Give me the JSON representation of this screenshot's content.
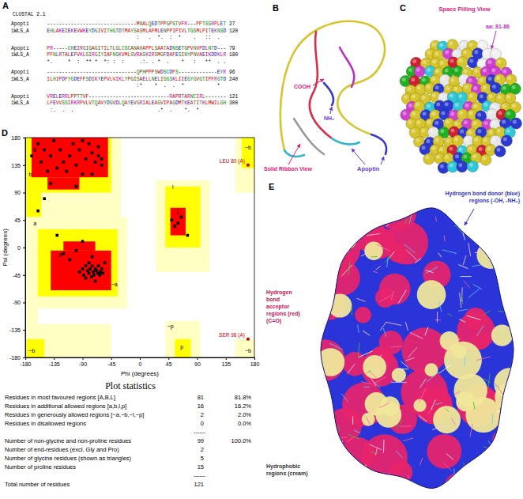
{
  "panel_labels": [
    "A",
    "B",
    "C",
    "D",
    "E"
  ],
  "alignment": {
    "header": "CLUSTAL 2.1",
    "blocks": [
      [
        "Apopti      ------------------------------MNALQEDTPPGPSTVFR---PPTSSRPLET 27",
        "1WLS_A      EHLAKEIEKEVWKEYDGIVITHGTDTMAYSASMLAFMLENPPIPIVLTGSMLPITEKNSD 120",
        "                                          :   .  *.  :  *    .   ::  .  "
      ],
      [
        "Apopti      PR-----CHEIRGIGAGITILTLGLCGCANAHAPPLSAATADNSETGPVNVPDLNTD--- 79",
        "1WLS_A      PFNLRTALEFVKLGIRGIYIAFNGKVMLGVRASKIRSMGFDAFESINYPNVAEIKDDKLR 180",
        "            *.     *  :  ** *  *: :  :     .:. . *  .    *   :   **  . ."
      ],
      [
        "Apopti      ------------------------------QPHPPPSWDSCDPS-------------EYR 96",
        "1WLS_A      ILHIPDFYGDEFFSDIKYEPVLVIKLYPGISAELLNELIGGSKLIIEGYGVGTIPFRGTD 240",
        "                                          :*    *  .  .  *           *  "
      ],
      [
        "Apopti      VRELERRLPPTTVF---------------------------RAPRTARNCIRL------- 121",
        "1WLS_A      LFEVVSSIRKRPVLVTQAVYDGVDLQAYEVGRIALEAGVIPAGDMTKEATITKLMWILGH 300",
        "             :.  .  .                            .*  .    *.  *        "
      ]
    ]
  },
  "ribbon": {
    "cooh": "COOH",
    "nh2": "NH₂",
    "title": "Solid Ribbon View",
    "apoptin": "Apoptin"
  },
  "space_filling": {
    "title": "Space Filling View",
    "highlight": "aa: 81-86"
  },
  "chart_data": {
    "type": "scatter",
    "xlabel": "Phi (degrees)",
    "ylabel": "Psi (degrees)",
    "x": [
      -160,
      -150,
      -140,
      -135,
      -125,
      -120,
      -115,
      -110,
      -105,
      -100,
      -95,
      -90,
      -85,
      -80,
      -75,
      -70,
      -65,
      -60,
      -145,
      -130,
      -90,
      -170,
      -155,
      -75,
      -100,
      -65,
      -95,
      -90,
      -88,
      -85,
      -82,
      -80,
      -78,
      -76,
      -75,
      -73,
      -72,
      -70,
      -68,
      -66,
      -65,
      -63,
      -62,
      -60,
      -58,
      -85,
      -70,
      -80,
      -110,
      -120,
      -100,
      -75,
      -130,
      -90,
      50,
      55,
      60,
      65,
      -150,
      -60,
      -140,
      -160,
      -55,
      75
    ],
    "y": [
      170,
      160,
      150,
      175,
      160,
      140,
      125,
      150,
      170,
      135,
      160,
      120,
      145,
      170,
      155,
      140,
      150,
      135,
      125,
      130,
      175,
      150,
      140,
      120,
      100,
      165,
      -40,
      -35,
      -45,
      -30,
      -38,
      -42,
      -35,
      -48,
      -30,
      -40,
      -45,
      -35,
      -38,
      -42,
      -30,
      -45,
      -40,
      -35,
      -42,
      -50,
      -55,
      -25,
      -20,
      -10,
      -5,
      -15,
      20,
      10,
      45,
      35,
      40,
      50,
      80,
      145,
      105,
      60,
      -25,
      20
    ],
    "xlim": [
      -180,
      180
    ],
    "ylim": [
      -180,
      180
    ],
    "xticks": [
      -180,
      -135,
      -90,
      -45,
      0,
      45,
      90,
      135,
      180
    ],
    "yticks": [
      -180,
      -135,
      -90,
      -45,
      0,
      45,
      90,
      135,
      180
    ],
    "marker": "square",
    "color": "#000000",
    "grid": false,
    "annotations": [
      {
        "text": "LEU 80 (A)",
        "x": 170,
        "y": 135,
        "color": "#cc0000"
      },
      {
        "text": "SER 98 (A)",
        "x": 170,
        "y": -150,
        "color": "#cc0000"
      }
    ],
    "region_labels": [
      {
        "text": "B",
        "x": -165,
        "y": 160
      },
      {
        "text": "b",
        "x": -172,
        "y": 120
      },
      {
        "text": "A",
        "x": -125,
        "y": -12
      },
      {
        "text": "a",
        "x": -165,
        "y": 40
      },
      {
        "text": "~a",
        "x": -40,
        "y": -60
      },
      {
        "text": "L",
        "x": 60,
        "y": 58
      },
      {
        "text": "l",
        "x": 52,
        "y": 100
      },
      {
        "text": "~b",
        "x": 170,
        "y": 165
      },
      {
        "text": "~b",
        "x": 170,
        "y": -168
      },
      {
        "text": "~b",
        "x": -170,
        "y": -168
      },
      {
        "text": "p",
        "x": 66,
        "y": -162
      },
      {
        "text": "~p",
        "x": 48,
        "y": -128
      }
    ]
  },
  "statistics": {
    "title": "Plot statistics",
    "rows": [
      {
        "label": "Residues in most favoured regions [A,B,L]",
        "value": 81,
        "percent": "81.8%"
      },
      {
        "label": "Residues in additional allowed regions [a,b,l,p]",
        "value": 16,
        "percent": "16.2%"
      },
      {
        "label": "Residues in generously allowed regions [~a,~b,~l,~p]",
        "value": 2,
        "percent": "2.0%"
      },
      {
        "label": "Residues in disallowed regions",
        "value": 0,
        "percent": "0.0%"
      },
      {
        "rule": "------"
      },
      {
        "label": "Number of non-glycine and non-proline residues",
        "value": 99,
        "percent": "100.0%"
      },
      {
        "label": "Number of end-residues (excl. Gly and Pro)",
        "value": 2
      },
      {
        "label": "Number of glycine residues (shown as triangles)",
        "value": 5
      },
      {
        "label": "Number of proline residues",
        "value": 15
      },
      {
        "rule": "------"
      },
      {
        "label": "Total number of residues",
        "value": 121
      }
    ]
  },
  "surface": {
    "donor": [
      "Hydrogen bond donor (blue)",
      "regions (-OH, -NH₂)"
    ],
    "acceptor": [
      "Hydrogen",
      "bond",
      "acceptor",
      "regions (red)",
      "(C=O)"
    ],
    "hydrophobic": [
      "Hydrophobic",
      "regions (cream)"
    ]
  }
}
